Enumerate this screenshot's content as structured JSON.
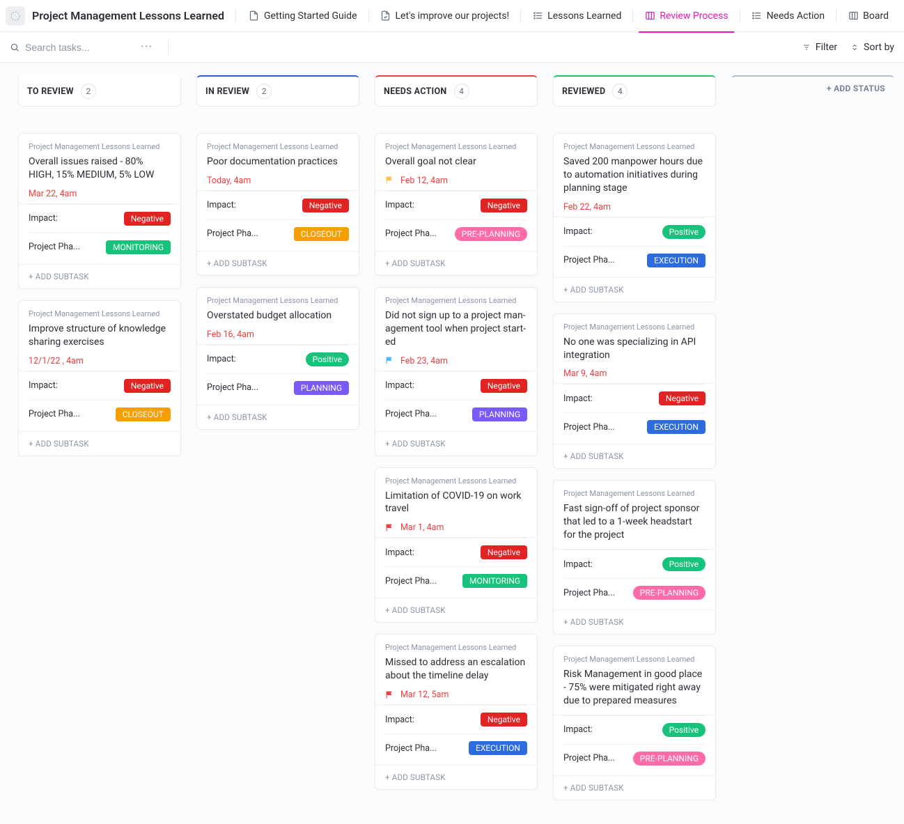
{
  "header": {
    "title": "Project Management Lessons Learned",
    "tabs": [
      {
        "label": "Getting Started Guide",
        "icon": "doc-icon",
        "active": false
      },
      {
        "label": "Let's improve our projects!",
        "icon": "doc-check-icon",
        "active": false
      },
      {
        "label": "Lessons Learned",
        "icon": "list-icon",
        "active": false
      },
      {
        "label": "Review Process",
        "icon": "board-icon",
        "active": true
      },
      {
        "label": "Needs Action",
        "icon": "list-icon",
        "active": false
      },
      {
        "label": "Board",
        "icon": "board-icon",
        "active": false
      }
    ]
  },
  "toolbar": {
    "search_placeholder": "Search tasks...",
    "filter_label": "Filter",
    "sort_label": "Sort by"
  },
  "board": {
    "add_status_label": "+ ADD STATUS",
    "add_subtask_label": "+ ADD SUBTASK",
    "impact_label": "Impact:",
    "phase_label": "Project Pha...",
    "columns": [
      {
        "key": "to-review",
        "name": "TO REVIEW",
        "count": "2",
        "accent": "#ffffff",
        "cards": [
          {
            "project": "Project Management Lessons Learned",
            "title": "Overall issues raised - 80% HIGH, 15% MEDIUM, 5% LOW",
            "date": "Mar 22, 4am",
            "flag": null,
            "impact": {
              "text": "Negative",
              "class": "neg"
            },
            "phase": {
              "text": "MONITORING",
              "class": "monitoring"
            }
          },
          {
            "project": "Project Management Lessons Learned",
            "title": "Improve structure of knowledge sharing exercises",
            "date": "12/1/22 , 4am",
            "flag": null,
            "impact": {
              "text": "Negative",
              "class": "neg"
            },
            "phase": {
              "text": "CLOSEOUT",
              "class": "closeout"
            }
          }
        ]
      },
      {
        "key": "in-review",
        "name": "IN REVIEW",
        "count": "2",
        "accent": "#2d5be3",
        "cards": [
          {
            "project": "Project Management Lessons Learned",
            "title": "Poor documentation practices",
            "date": "Today, 4am",
            "flag": null,
            "impact": {
              "text": "Negative",
              "class": "neg"
            },
            "phase": {
              "text": "CLOSEOUT",
              "class": "closeout"
            }
          },
          {
            "project": "Project Management Lessons Learned",
            "title": "Overstated budget allocation",
            "date": "Feb 16, 4am",
            "flag": null,
            "impact": {
              "text": "Positive",
              "class": "pos",
              "rounded": true
            },
            "phase": {
              "text": "PLANNING",
              "class": "planning"
            }
          }
        ]
      },
      {
        "key": "needs-action",
        "name": "NEEDS ACTION",
        "count": "4",
        "accent": "#f03e3e",
        "cards": [
          {
            "project": "Project Management Lessons Learned",
            "title": "Overall goal not clear",
            "date": "Feb 12, 4am",
            "flag": "#ffc241",
            "impact": {
              "text": "Negative",
              "class": "neg"
            },
            "phase": {
              "text": "PRE-PLANNING",
              "class": "preplanning",
              "rounded": true
            }
          },
          {
            "project": "Project Management Lessons Learned",
            "title": "Did not sign up to a project man­agement tool when project start­ed",
            "date": "Feb 23, 4am",
            "flag": "#4fb5ff",
            "impact": {
              "text": "Negative",
              "class": "neg"
            },
            "phase": {
              "text": "PLANNING",
              "class": "planning"
            }
          },
          {
            "project": "Project Management Lessons Learned",
            "title": "Limitation of COVID-19 on work trav­el",
            "date": "Mar 1, 4am",
            "flag": "#f03e3e",
            "impact": {
              "text": "Negative",
              "class": "neg"
            },
            "phase": {
              "text": "MONITORING",
              "class": "monitoring"
            }
          },
          {
            "project": "Project Management Lessons Learned",
            "title": "Missed to address an escalation about the timeline delay",
            "date": "Mar 12, 5am",
            "flag": "#f03e3e",
            "impact": {
              "text": "Negative",
              "class": "neg"
            },
            "phase": {
              "text": "EXECUTION",
              "class": "execution"
            }
          }
        ]
      },
      {
        "key": "reviewed",
        "name": "REVIEWED",
        "count": "4",
        "accent": "#1ec867",
        "cards": [
          {
            "project": "Project Management Lessons Learned",
            "title": "Saved 200 manpower hours due to automation initiatives during planning stage",
            "date": "Feb 22, 4am",
            "flag": null,
            "impact": {
              "text": "Positive",
              "class": "pos",
              "rounded": true
            },
            "phase": {
              "text": "EXECUTION",
              "class": "execution"
            }
          },
          {
            "project": "Project Management Lessons Learned",
            "title": "No one was specializing in API integration",
            "date": "Mar 9, 4am",
            "flag": null,
            "impact": {
              "text": "Negative",
              "class": "neg"
            },
            "phase": {
              "text": "EXECUTION",
              "class": "execution"
            }
          },
          {
            "project": "Project Management Lessons Learned",
            "title": "Fast sign-off of project sponsor that led to a 1-week headstart for the project",
            "date": null,
            "flag": null,
            "impact": {
              "text": "Positive",
              "class": "pos",
              "rounded": true
            },
            "phase": {
              "text": "PRE-PLANNING",
              "class": "preplanning",
              "rounded": true
            }
          },
          {
            "project": "Project Management Lessons Learned",
            "title": "Risk Management in good place - 75% were mitigated right away due to prepared measures",
            "date": null,
            "flag": null,
            "impact": {
              "text": "Positive",
              "class": "pos",
              "rounded": true
            },
            "phase": {
              "text": "PRE-PLANNING",
              "class": "preplanning",
              "rounded": true
            }
          }
        ]
      }
    ]
  },
  "colors": {
    "negative": "#e02424",
    "positive": "#17c37b",
    "monitoring": "#17c37b",
    "closeout": "#f59f00",
    "preplanning": "#ff6ba8",
    "planning": "#7a5af8",
    "execution": "#2d6cdf",
    "active_tab": "#e718b5",
    "date_text": "#f03e3e"
  }
}
